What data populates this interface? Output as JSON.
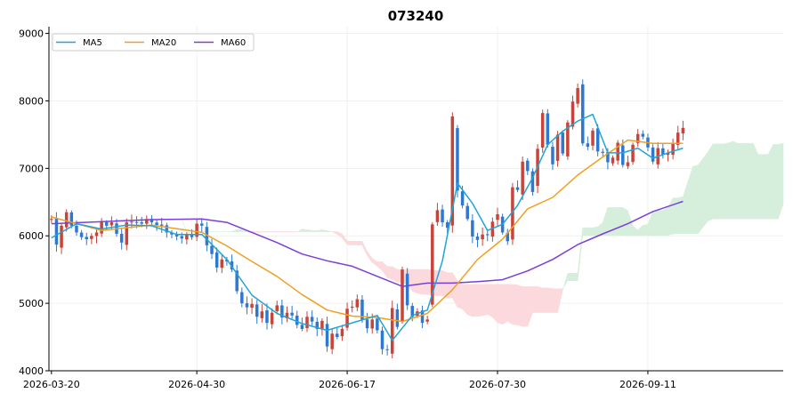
{
  "chart_data": {
    "type": "candlestick",
    "title": "073240",
    "xlabel": "",
    "ylabel": "",
    "ylim": [
      4000,
      9100
    ],
    "y_ticks": [
      4000,
      5000,
      6000,
      7000,
      8000,
      9000
    ],
    "x_tick_labels": [
      "2026-03-20",
      "2026-04-30",
      "2026-06-17",
      "2026-07-30",
      "2026-09-11"
    ],
    "x_tick_index": [
      0,
      29,
      59,
      89,
      119
    ],
    "x_range_index": [
      -0.5,
      146
    ],
    "grid": true,
    "legend_position": "top-left",
    "colors": {
      "up": "#c8433a",
      "down": "#2f78d1",
      "ma5": "#1fa5d6",
      "ma20": "#f0a020",
      "ma60": "#7a3fd9",
      "cloud_bull": "#d6efdc",
      "cloud_bear": "#fbd9dc"
    },
    "legend": [
      {
        "name": "MA5",
        "color": "#1fa5d6"
      },
      {
        "name": "MA20",
        "color": "#f0a020"
      },
      {
        "name": "MA60",
        "color": "#7a3fd9"
      }
    ],
    "closes": [
      6250,
      5870,
      6150,
      6350,
      6150,
      6050,
      5980,
      5950,
      6000,
      6050,
      6200,
      6150,
      6200,
      6030,
      5900,
      6200,
      6210,
      6200,
      6180,
      6250,
      6200,
      6160,
      6150,
      6050,
      6020,
      5990,
      5960,
      6020,
      5980,
      6180,
      6150,
      5860,
      5730,
      5530,
      5650,
      5620,
      5500,
      5180,
      5000,
      4940,
      4990,
      4800,
      4880,
      4710,
      4860,
      4970,
      4790,
      4860,
      4820,
      4680,
      4620,
      4800,
      4730,
      4620,
      4740,
      4360,
      4550,
      4500,
      4620,
      4920,
      4950,
      5060,
      4760,
      4630,
      4760,
      4600,
      4320,
      4310,
      4930,
      4650,
      5500,
      4970,
      4800,
      4880,
      4710,
      4760,
      6170,
      6380,
      6200,
      6120,
      7770,
      6670,
      6450,
      6250,
      5990,
      5940,
      6020,
      6010,
      6210,
      6320,
      6050,
      5920,
      6720,
      6680,
      7100,
      6960,
      6650,
      7290,
      7820,
      7350,
      7060,
      7500,
      7220,
      7680,
      7990,
      8190,
      7370,
      7320,
      7560,
      7250,
      7230,
      7090,
      7160,
      7380,
      7050,
      7090,
      7350,
      7510,
      7470,
      7310,
      7100,
      7300,
      7200,
      7230,
      7360,
      7530,
      7600
    ],
    "ma5_sample": [
      [
        0,
        5970
      ],
      [
        5,
        6180
      ],
      [
        10,
        6100
      ],
      [
        15,
        6160
      ],
      [
        20,
        6150
      ],
      [
        25,
        6020
      ],
      [
        30,
        6020
      ],
      [
        35,
        5650
      ],
      [
        40,
        5120
      ],
      [
        45,
        4850
      ],
      [
        50,
        4700
      ],
      [
        55,
        4600
      ],
      [
        60,
        4710
      ],
      [
        65,
        4820
      ],
      [
        68,
        4450
      ],
      [
        72,
        4820
      ],
      [
        75,
        4900
      ],
      [
        78,
        5630
      ],
      [
        81,
        6780
      ],
      [
        84,
        6480
      ],
      [
        87,
        6080
      ],
      [
        90,
        6170
      ],
      [
        93,
        6450
      ],
      [
        96,
        6860
      ],
      [
        99,
        7350
      ],
      [
        102,
        7550
      ],
      [
        105,
        7700
      ],
      [
        108,
        7800
      ],
      [
        111,
        7230
      ],
      [
        114,
        7230
      ],
      [
        117,
        7300
      ],
      [
        120,
        7150
      ],
      [
        123,
        7230
      ],
      [
        126,
        7300
      ]
    ],
    "ma20_sample": [
      [
        0,
        6280
      ],
      [
        10,
        6080
      ],
      [
        20,
        6160
      ],
      [
        30,
        6050
      ],
      [
        35,
        5850
      ],
      [
        40,
        5620
      ],
      [
        45,
        5400
      ],
      [
        50,
        5130
      ],
      [
        55,
        4900
      ],
      [
        60,
        4810
      ],
      [
        65,
        4790
      ],
      [
        70,
        4730
      ],
      [
        75,
        4850
      ],
      [
        80,
        5200
      ],
      [
        85,
        5650
      ],
      [
        90,
        5950
      ],
      [
        95,
        6400
      ],
      [
        100,
        6570
      ],
      [
        105,
        6900
      ],
      [
        110,
        7170
      ],
      [
        115,
        7420
      ],
      [
        120,
        7370
      ],
      [
        126,
        7370
      ]
    ],
    "ma60_sample": [
      [
        0,
        6180
      ],
      [
        20,
        6240
      ],
      [
        30,
        6250
      ],
      [
        35,
        6200
      ],
      [
        40,
        6050
      ],
      [
        45,
        5900
      ],
      [
        50,
        5730
      ],
      [
        55,
        5630
      ],
      [
        60,
        5550
      ],
      [
        65,
        5400
      ],
      [
        70,
        5250
      ],
      [
        75,
        5300
      ],
      [
        80,
        5300
      ],
      [
        85,
        5320
      ],
      [
        90,
        5350
      ],
      [
        95,
        5480
      ],
      [
        100,
        5650
      ],
      [
        105,
        5870
      ],
      [
        110,
        6030
      ],
      [
        115,
        6180
      ],
      [
        120,
        6360
      ],
      [
        126,
        6510
      ]
    ]
  }
}
